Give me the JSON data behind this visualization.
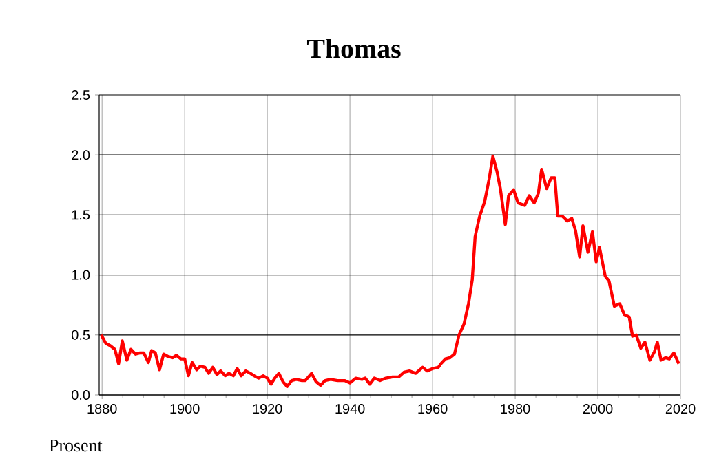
{
  "chart_data": {
    "type": "line",
    "title": "Thomas",
    "ylabel": "Prosent",
    "grid": true,
    "xlim": [
      1879.3,
      2020
    ],
    "ylim": [
      0,
      2.5
    ],
    "xticks": [
      1880,
      1900,
      1920,
      1940,
      1960,
      1980,
      2000,
      2020
    ],
    "yticks": [
      {
        "value": 0,
        "label": "0.0"
      },
      {
        "value": 0.5,
        "label": "0.5"
      },
      {
        "value": 1,
        "label": "1.0"
      },
      {
        "value": 1.5,
        "label": "1.5"
      },
      {
        "value": 2,
        "label": "2.0"
      },
      {
        "value": 2.5,
        "label": "2.5"
      }
    ],
    "x": [
      1879.8,
      1880.9,
      1882,
      1883.1,
      1884,
      1884.9,
      1886,
      1887,
      1888.1,
      1889.2,
      1890.1,
      1891.2,
      1892,
      1892.9,
      1893.9,
      1894.9,
      1896,
      1897.1,
      1898,
      1899.1,
      1900,
      1900.9,
      1901.8,
      1902.9,
      1903.8,
      1904.9,
      1905.8,
      1906.8,
      1907.8,
      1908.7,
      1909.8,
      1910.7,
      1911.8,
      1912.7,
      1913.7,
      1914.8,
      1915.9,
      1916.8,
      1917.9,
      1919,
      1920,
      1920.9,
      1921.8,
      1922.8,
      1923.8,
      1924.8,
      1925.9,
      1927,
      1928.4,
      1929.2,
      1930.7,
      1931.8,
      1932.9,
      1934,
      1935.3,
      1937,
      1938.7,
      1940,
      1941.4,
      1942.9,
      1943.7,
      1944.8,
      1945.9,
      1947.3,
      1948.7,
      1950.3,
      1951.8,
      1953.1,
      1954.4,
      1955.9,
      1957.6,
      1958.7,
      1960,
      1961.4,
      1962,
      1963.1,
      1964.2,
      1965.3,
      1966.4,
      1967.6,
      1968.7,
      1969.6,
      1970.3,
      1971.4,
      1972.6,
      1973.7,
      1974.6,
      1975.6,
      1976.4,
      1977.6,
      1978.4,
      1979.6,
      1980.7,
      1982.3,
      1983.4,
      1984.6,
      1985.6,
      1986.4,
      1987.6,
      1988.7,
      1989.6,
      1990.3,
      1991.4,
      1992.6,
      1993.7,
      1994.6,
      1995.6,
      1996.4,
      1997.6,
      1998.7,
      1999.6,
      2000.4,
      2001.8,
      2002.7,
      2004,
      2005.3,
      2006.4,
      2007.6,
      2008.4,
      2009.3,
      2010.4,
      2011.4,
      2012.6,
      2013.7,
      2014.4,
      2015.3,
      2016.4,
      2017.3,
      2018.4,
      2019.6
    ],
    "series": [
      {
        "color": "#ff0000",
        "values": [
          0.5,
          0.43,
          0.41,
          0.38,
          0.26,
          0.45,
          0.29,
          0.38,
          0.34,
          0.35,
          0.35,
          0.27,
          0.37,
          0.35,
          0.21,
          0.34,
          0.32,
          0.31,
          0.33,
          0.3,
          0.3,
          0.16,
          0.27,
          0.21,
          0.24,
          0.23,
          0.18,
          0.23,
          0.17,
          0.2,
          0.16,
          0.18,
          0.16,
          0.22,
          0.16,
          0.2,
          0.18,
          0.16,
          0.14,
          0.16,
          0.14,
          0.09,
          0.14,
          0.18,
          0.11,
          0.07,
          0.12,
          0.13,
          0.12,
          0.12,
          0.18,
          0.11,
          0.08,
          0.12,
          0.13,
          0.12,
          0.12,
          0.1,
          0.14,
          0.13,
          0.14,
          0.09,
          0.14,
          0.12,
          0.14,
          0.15,
          0.15,
          0.19,
          0.2,
          0.18,
          0.23,
          0.2,
          0.22,
          0.23,
          0.26,
          0.3,
          0.31,
          0.34,
          0.5,
          0.59,
          0.76,
          0.96,
          1.32,
          1.49,
          1.61,
          1.8,
          1.99,
          1.86,
          1.72,
          1.42,
          1.66,
          1.71,
          1.6,
          1.58,
          1.66,
          1.6,
          1.68,
          1.88,
          1.72,
          1.81,
          1.81,
          1.49,
          1.49,
          1.45,
          1.47,
          1.37,
          1.15,
          1.41,
          1.19,
          1.36,
          1.11,
          1.23,
          0.99,
          0.95,
          0.74,
          0.76,
          0.67,
          0.65,
          0.49,
          0.5,
          0.39,
          0.44,
          0.29,
          0.36,
          0.44,
          0.29,
          0.31,
          0.3,
          0.35,
          0.26
        ]
      }
    ]
  }
}
